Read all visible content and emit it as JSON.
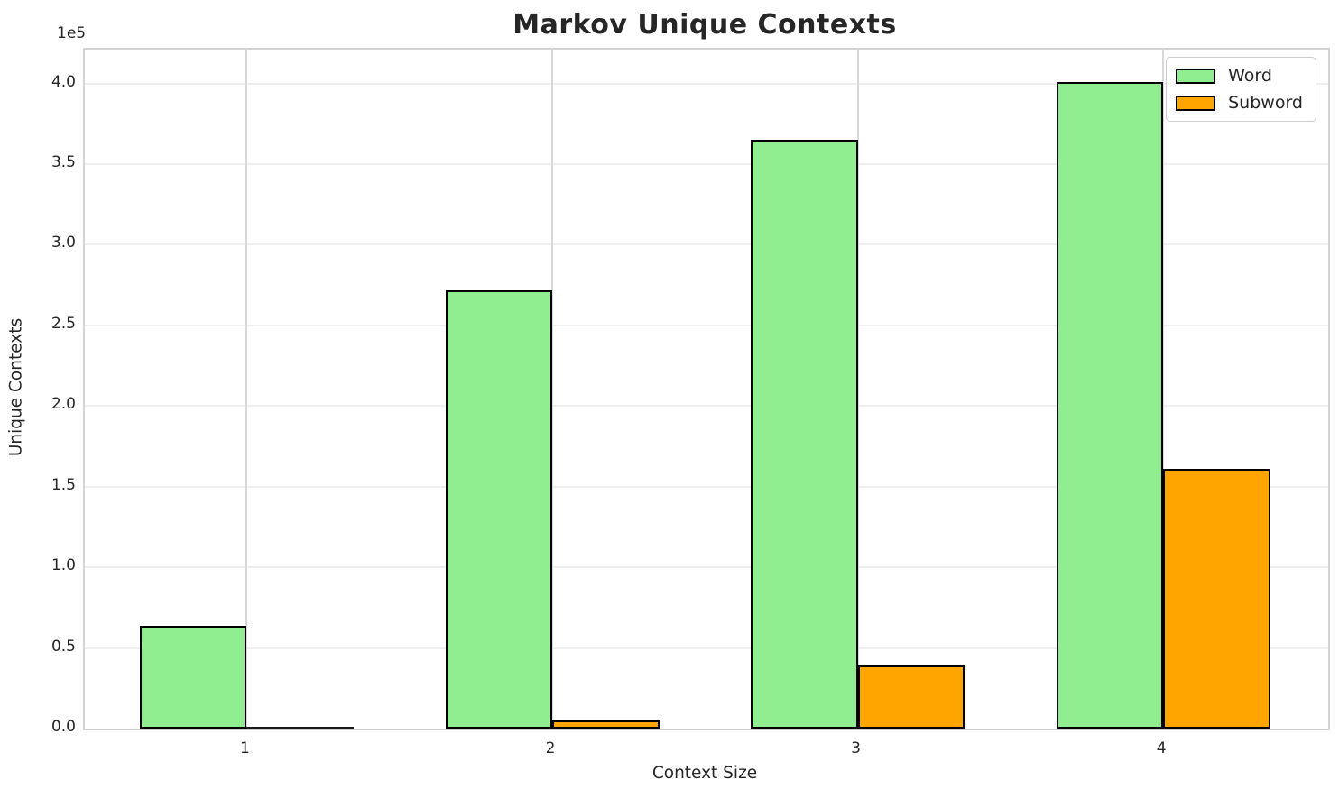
{
  "chart_data": {
    "type": "bar",
    "title": "Markov Unique Contexts",
    "xlabel": "Context Size",
    "ylabel": "Unique Contexts",
    "y_offset_label": "1e5",
    "categories": [
      "1",
      "2",
      "3",
      "4"
    ],
    "series": [
      {
        "name": "Word",
        "color": "#90EE90",
        "values": [
          64000,
          272000,
          365000,
          401000
        ]
      },
      {
        "name": "Subword",
        "color": "#FFA500",
        "values": [
          500,
          5000,
          39000,
          161000
        ]
      }
    ],
    "bar_edge_color": "#000000",
    "bar_width_units": 0.35,
    "xlim": [
      0.47,
      4.54
    ],
    "ylim": [
      0,
      421000
    ],
    "yticks": [
      0,
      50000,
      100000,
      150000,
      200000,
      250000,
      300000,
      350000,
      400000
    ],
    "ytick_labels": [
      "0.0",
      "0.5",
      "1.0",
      "1.5",
      "2.0",
      "2.5",
      "3.0",
      "3.5",
      "4.0"
    ],
    "grid": true,
    "grid_color_horizontal": "#efefef",
    "grid_color_vertical": "#d8d8d8",
    "spine_color": "#d4d4d4",
    "legend_position": "upper right",
    "legend": [
      "Word",
      "Subword"
    ]
  }
}
